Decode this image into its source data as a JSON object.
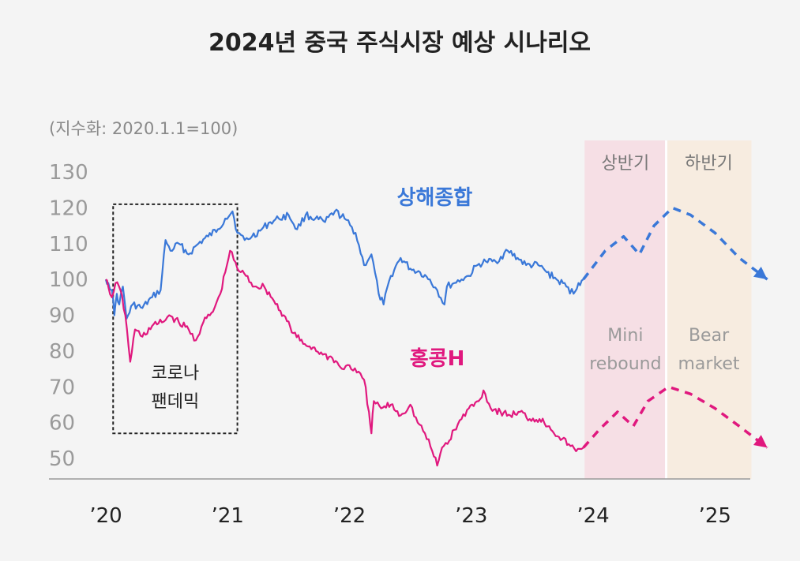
{
  "chart_data": {
    "type": "line",
    "title": "2024년 중국 주식시장 예상 시나리오",
    "unit_note": "(지수화: 2020.1.1=100)",
    "ylim": [
      45,
      130
    ],
    "y_ticks": [
      130,
      120,
      110,
      100,
      90,
      80,
      70,
      60,
      50
    ],
    "xlim": [
      2020.0,
      2025.5
    ],
    "x_ticks": [
      {
        "value": 2020.0,
        "label": "’20"
      },
      {
        "value": 2021.0,
        "label": "’21"
      },
      {
        "value": 2022.0,
        "label": "’22"
      },
      {
        "value": 2023.0,
        "label": "’23"
      },
      {
        "value": 2024.0,
        "label": "’24"
      },
      {
        "value": 2025.0,
        "label": "’25"
      }
    ],
    "grid": false,
    "colors": {
      "shanghai": "#3a78d8",
      "hongkong": "#e0187e",
      "text": "#222222",
      "muted": "#8a8a8a",
      "first_half_band": "#f6dfe5",
      "second_half_band": "#f7ece0"
    },
    "series": [
      {
        "name": "상해종합",
        "color": "#3a78d8",
        "actual": [
          [
            2020.0,
            100
          ],
          [
            2020.02,
            99
          ],
          [
            2020.05,
            97
          ],
          [
            2020.07,
            90
          ],
          [
            2020.09,
            96
          ],
          [
            2020.11,
            93
          ],
          [
            2020.14,
            98
          ],
          [
            2020.17,
            89
          ],
          [
            2020.22,
            93
          ],
          [
            2020.3,
            92
          ],
          [
            2020.38,
            95
          ],
          [
            2020.45,
            97
          ],
          [
            2020.49,
            111
          ],
          [
            2020.53,
            108
          ],
          [
            2020.6,
            110
          ],
          [
            2020.68,
            107
          ],
          [
            2020.76,
            110
          ],
          [
            2020.84,
            112
          ],
          [
            2020.92,
            114
          ],
          [
            2020.98,
            117
          ],
          [
            2021.04,
            119
          ],
          [
            2021.08,
            113
          ],
          [
            2021.14,
            111
          ],
          [
            2021.2,
            112
          ],
          [
            2021.28,
            114
          ],
          [
            2021.35,
            116
          ],
          [
            2021.42,
            117
          ],
          [
            2021.5,
            118
          ],
          [
            2021.57,
            114
          ],
          [
            2021.64,
            118
          ],
          [
            2021.72,
            117
          ],
          [
            2021.8,
            116
          ],
          [
            2021.88,
            119
          ],
          [
            2021.96,
            117
          ],
          [
            2022.05,
            113
          ],
          [
            2022.12,
            104
          ],
          [
            2022.18,
            107
          ],
          [
            2022.24,
            96
          ],
          [
            2022.28,
            93
          ],
          [
            2022.34,
            101
          ],
          [
            2022.42,
            106
          ],
          [
            2022.5,
            103
          ],
          [
            2022.58,
            102
          ],
          [
            2022.66,
            100
          ],
          [
            2022.72,
            97
          ],
          [
            2022.78,
            93
          ],
          [
            2022.8,
            98
          ],
          [
            2022.86,
            99
          ],
          [
            2022.92,
            100
          ],
          [
            2022.98,
            101
          ],
          [
            2023.05,
            104
          ],
          [
            2023.12,
            105
          ],
          [
            2023.2,
            105
          ],
          [
            2023.3,
            108
          ],
          [
            2023.38,
            106
          ],
          [
            2023.45,
            104
          ],
          [
            2023.55,
            104
          ],
          [
            2023.62,
            102
          ],
          [
            2023.7,
            100
          ],
          [
            2023.78,
            98
          ],
          [
            2023.84,
            96
          ],
          [
            2023.88,
            99
          ],
          [
            2023.92,
            100
          ]
        ],
        "forecast": [
          [
            2023.92,
            100
          ],
          [
            2024.1,
            108
          ],
          [
            2024.25,
            112
          ],
          [
            2024.38,
            107
          ],
          [
            2024.5,
            115
          ],
          [
            2024.65,
            120
          ],
          [
            2024.8,
            118
          ],
          [
            2025.0,
            113
          ],
          [
            2025.2,
            106
          ],
          [
            2025.43,
            100
          ]
        ]
      },
      {
        "name": "홍콩H",
        "color": "#e0187e",
        "actual": [
          [
            2020.0,
            100
          ],
          [
            2020.02,
            98
          ],
          [
            2020.05,
            95
          ],
          [
            2020.08,
            99
          ],
          [
            2020.12,
            97
          ],
          [
            2020.16,
            90
          ],
          [
            2020.2,
            77
          ],
          [
            2020.24,
            86
          ],
          [
            2020.3,
            84
          ],
          [
            2020.38,
            87
          ],
          [
            2020.46,
            88
          ],
          [
            2020.52,
            90
          ],
          [
            2020.6,
            88
          ],
          [
            2020.68,
            86
          ],
          [
            2020.74,
            83
          ],
          [
            2020.8,
            88
          ],
          [
            2020.88,
            91
          ],
          [
            2020.94,
            96
          ],
          [
            2020.98,
            102
          ],
          [
            2021.02,
            108
          ],
          [
            2021.08,
            103
          ],
          [
            2021.15,
            101
          ],
          [
            2021.22,
            98
          ],
          [
            2021.3,
            98
          ],
          [
            2021.38,
            94
          ],
          [
            2021.46,
            90
          ],
          [
            2021.54,
            85
          ],
          [
            2021.62,
            82
          ],
          [
            2021.7,
            81
          ],
          [
            2021.78,
            79
          ],
          [
            2021.86,
            78
          ],
          [
            2021.94,
            75
          ],
          [
            2022.0,
            76
          ],
          [
            2022.06,
            74
          ],
          [
            2022.12,
            72
          ],
          [
            2022.16,
            63
          ],
          [
            2022.18,
            57
          ],
          [
            2022.2,
            66
          ],
          [
            2022.26,
            64
          ],
          [
            2022.34,
            65
          ],
          [
            2022.42,
            62
          ],
          [
            2022.5,
            65
          ],
          [
            2022.56,
            60
          ],
          [
            2022.62,
            57
          ],
          [
            2022.68,
            52
          ],
          [
            2022.72,
            48
          ],
          [
            2022.76,
            53
          ],
          [
            2022.82,
            55
          ],
          [
            2022.86,
            58
          ],
          [
            2022.92,
            61
          ],
          [
            2022.98,
            64
          ],
          [
            2023.06,
            66
          ],
          [
            2023.1,
            69
          ],
          [
            2023.16,
            64
          ],
          [
            2023.24,
            63
          ],
          [
            2023.32,
            62
          ],
          [
            2023.4,
            63
          ],
          [
            2023.48,
            61
          ],
          [
            2023.56,
            61
          ],
          [
            2023.64,
            59
          ],
          [
            2023.72,
            56
          ],
          [
            2023.8,
            54
          ],
          [
            2023.86,
            52
          ],
          [
            2023.92,
            53
          ]
        ],
        "forecast": [
          [
            2023.92,
            53
          ],
          [
            2024.05,
            58
          ],
          [
            2024.2,
            63
          ],
          [
            2024.33,
            59
          ],
          [
            2024.45,
            66
          ],
          [
            2024.62,
            70
          ],
          [
            2024.8,
            68
          ],
          [
            2025.0,
            64
          ],
          [
            2025.2,
            59
          ],
          [
            2025.43,
            53
          ]
        ]
      }
    ],
    "series_labels": [
      {
        "text": "상해종합",
        "series": "상해종합",
        "x": 2022.7,
        "y": 121
      },
      {
        "text": "홍콩H",
        "series": "홍콩H",
        "x": 2022.72,
        "y": 76
      }
    ],
    "bands": [
      {
        "header": "상반기",
        "lines": [
          "Mini",
          "rebound"
        ],
        "from": 2023.93,
        "to": 2024.6,
        "color": "#f6dfe5"
      },
      {
        "header": "하반기",
        "lines": [
          "Bear",
          "market"
        ],
        "from": 2024.6,
        "to": 2025.3,
        "color": "#f7ece0"
      }
    ],
    "annotation_box": {
      "lines": [
        "코로나",
        "팬데믹"
      ],
      "from_x": 2020.06,
      "to_x": 2021.08,
      "from_y": 57,
      "to_y": 121
    }
  }
}
